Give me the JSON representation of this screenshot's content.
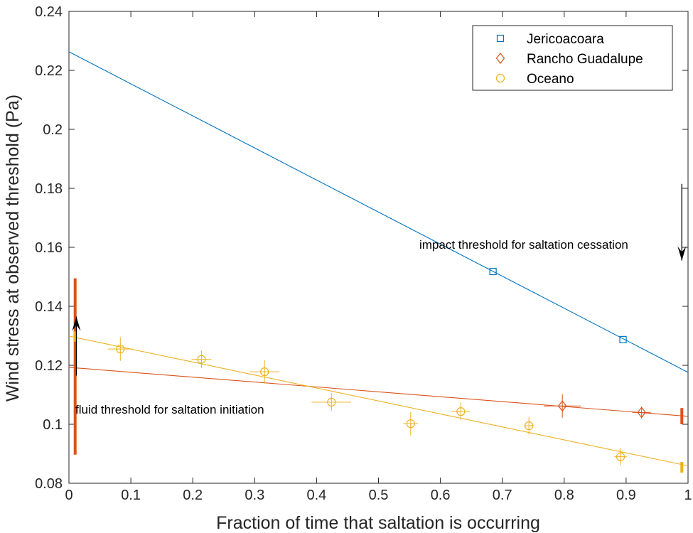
{
  "chart_data": {
    "type": "scatter",
    "xlabel": "Fraction of time that saltation is occurring",
    "ylabel": "Wind stress at observed threshold (Pa)",
    "xlim": [
      0,
      1
    ],
    "ylim": [
      0.08,
      0.24
    ],
    "xticks": [
      "0",
      "0.1",
      "0.2",
      "0.3",
      "0.4",
      "0.5",
      "0.6",
      "0.7",
      "0.8",
      "0.9",
      "1"
    ],
    "yticks": [
      "0.08",
      "0.1",
      "0.12",
      "0.14",
      "0.16",
      "0.18",
      "0.2",
      "0.22",
      "0.24"
    ],
    "grid": false,
    "legend_position": "top-right",
    "series": [
      {
        "name": "Jericoacoara",
        "marker": "square",
        "color": "#0072BD",
        "points": [
          {
            "x": 0.685,
            "y": 0.1518
          },
          {
            "x": 0.895,
            "y": 0.1287
          }
        ],
        "fit": {
          "x": [
            0,
            1
          ],
          "y": [
            0.2263,
            0.1176
          ]
        }
      },
      {
        "name": "Rancho Guadalupe",
        "marker": "diamond",
        "color": "#D95319",
        "points": [
          {
            "x": 0.797,
            "y": 0.1062,
            "xerr": 0.03,
            "yerr": 0.004
          },
          {
            "x": 0.925,
            "y": 0.104,
            "xerr": 0.015,
            "yerr": 0.002
          }
        ],
        "fit": {
          "x": [
            0,
            1
          ],
          "y": [
            0.1193,
            0.1027
          ]
        },
        "intercept_bars": [
          {
            "x": 0.01,
            "low": 0.0897,
            "high": 0.1495
          },
          {
            "x": 0.99,
            "low": 0.1,
            "high": 0.1055
          }
        ]
      },
      {
        "name": "Oceano",
        "marker": "circle",
        "color": "#EDB120",
        "points": [
          {
            "x": 0.083,
            "y": 0.1255,
            "xerr": 0.02,
            "yerr": 0.004
          },
          {
            "x": 0.214,
            "y": 0.122,
            "xerr": 0.016,
            "yerr": 0.003
          },
          {
            "x": 0.316,
            "y": 0.1178,
            "xerr": 0.024,
            "yerr": 0.004
          },
          {
            "x": 0.424,
            "y": 0.1075,
            "xerr": 0.032,
            "yerr": 0.003
          },
          {
            "x": 0.552,
            "y": 0.1002,
            "xerr": 0.012,
            "yerr": 0.004
          },
          {
            "x": 0.633,
            "y": 0.1043,
            "xerr": 0.015,
            "yerr": 0.003
          },
          {
            "x": 0.743,
            "y": 0.0995,
            "xerr": 0.008,
            "yerr": 0.003
          },
          {
            "x": 0.891,
            "y": 0.089,
            "xerr": 0.01,
            "yerr": 0.003
          }
        ],
        "fit": {
          "x": [
            0,
            1
          ],
          "y": [
            0.1299,
            0.0859
          ]
        },
        "intercept_bars": [
          {
            "x": 0.01,
            "low": 0.128,
            "high": 0.1315
          },
          {
            "x": 0.99,
            "low": 0.0836,
            "high": 0.0872
          }
        ]
      }
    ],
    "annotations": [
      {
        "text": "impact threshold for saltation cessation",
        "arrow": {
          "x": 0.99,
          "from_y": 0.1815,
          "to_y": 0.1555
        }
      },
      {
        "text": "fluid threshold for saltation initiation",
        "arrow": {
          "x": 0.012,
          "from_y": 0.1165,
          "to_y": 0.1365
        }
      }
    ]
  }
}
